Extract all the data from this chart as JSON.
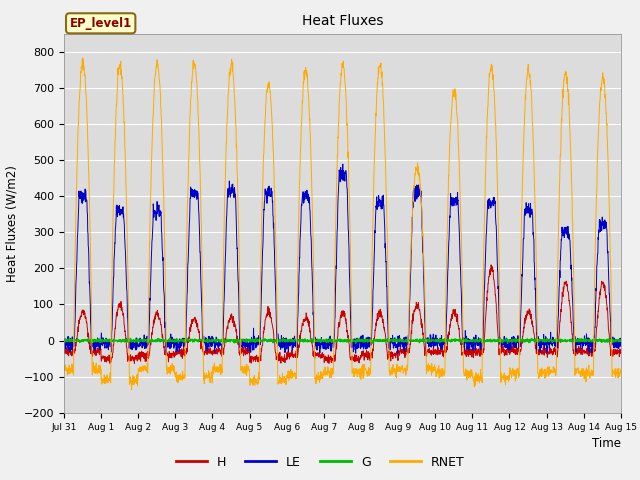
{
  "title": "Heat Fluxes",
  "ylabel": "Heat Fluxes (W/m2)",
  "xlabel": "Time",
  "ylim": [
    -200,
    850
  ],
  "yticks": [
    -200,
    -100,
    0,
    100,
    200,
    300,
    400,
    500,
    600,
    700,
    800
  ],
  "legend_label": "EP_level1",
  "series_labels": [
    "H",
    "LE",
    "G",
    "RNET"
  ],
  "series_colors": [
    "#cc0000",
    "#0000cc",
    "#00bb00",
    "#ffaa00"
  ],
  "bg_color": "#dcdcdc",
  "n_days": 15,
  "points_per_day": 144,
  "figsize": [
    6.4,
    4.8
  ],
  "dpi": 100,
  "rnet_peaks": [
    770,
    760,
    765,
    770,
    765,
    710,
    750,
    760,
    760,
    480,
    690,
    755,
    750,
    740,
    730
  ],
  "rnet_nights": [
    -80,
    -110,
    -80,
    -100,
    -80,
    -110,
    -100,
    -90,
    -85,
    -80,
    -90,
    -105,
    -90,
    -85,
    -90
  ],
  "le_peaks": [
    400,
    360,
    355,
    410,
    415,
    410,
    400,
    460,
    380,
    410,
    385,
    385,
    360,
    300,
    320
  ],
  "le_nights": [
    -10,
    -10,
    -8,
    -8,
    -8,
    -5,
    -5,
    -10,
    -8,
    -5,
    -5,
    -5,
    -5,
    -5,
    -5
  ],
  "h_peaks": [
    80,
    100,
    75,
    60,
    65,
    80,
    65,
    80,
    75,
    100,
    80,
    200,
    80,
    160,
    160
  ],
  "h_nights": [
    -30,
    -50,
    -40,
    -30,
    -30,
    -50,
    -40,
    -50,
    -40,
    -30,
    -30,
    -30,
    -30,
    -30,
    -30
  ]
}
